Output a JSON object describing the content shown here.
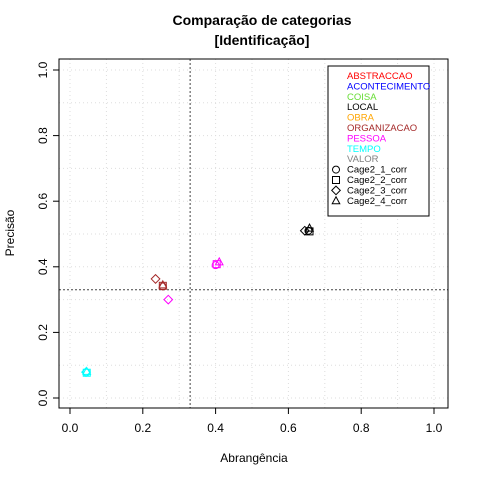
{
  "chart_data": {
    "type": "scatter",
    "title": "Comparação de categorias",
    "subtitle": "[Identificação]",
    "xlabel": "Abrangência",
    "ylabel": "Precisão",
    "xlim": [
      0.0,
      1.0
    ],
    "ylim": [
      0.0,
      1.0
    ],
    "x_ticks": [
      "0.0",
      "0.2",
      "0.4",
      "0.6",
      "0.8",
      "1.0"
    ],
    "y_ticks": [
      "0.0",
      "0.2",
      "0.4",
      "0.6",
      "0.8",
      "1.0"
    ],
    "grid": true,
    "legend_position": "top-right",
    "reference_lines": {
      "vertical_x": 0.33,
      "horizontal_y": 0.33
    },
    "categories": [
      {
        "name": "ABSTRACCAO",
        "color": "#ff0000"
      },
      {
        "name": "ACONTECIMENTO",
        "color": "#0000ff"
      },
      {
        "name": "COISA",
        "color": "#66dd33"
      },
      {
        "name": "LOCAL",
        "color": "#000000"
      },
      {
        "name": "OBRA",
        "color": "#ffa500"
      },
      {
        "name": "ORGANIZACAO",
        "color": "#a52a2a"
      },
      {
        "name": "PESSOA",
        "color": "#ff00ff"
      },
      {
        "name": "TEMPO",
        "color": "#00ffff"
      },
      {
        "name": "VALOR",
        "color": "#808080"
      }
    ],
    "runs": [
      {
        "name": "Cage2_1_corr",
        "marker": "circle"
      },
      {
        "name": "Cage2_2_corr",
        "marker": "square"
      },
      {
        "name": "Cage2_3_corr",
        "marker": "diamond"
      },
      {
        "name": "Cage2_4_corr",
        "marker": "triangle"
      }
    ],
    "points": [
      {
        "category": "LOCAL",
        "run": "Cage2_1_corr",
        "x": 0.655,
        "y": 0.51
      },
      {
        "category": "LOCAL",
        "run": "Cage2_2_corr",
        "x": 0.658,
        "y": 0.508
      },
      {
        "category": "LOCAL",
        "run": "Cage2_3_corr",
        "x": 0.645,
        "y": 0.51
      },
      {
        "category": "LOCAL",
        "run": "Cage2_4_corr",
        "x": 0.658,
        "y": 0.518
      },
      {
        "category": "PESSOA",
        "run": "Cage2_1_corr",
        "x": 0.4,
        "y": 0.405
      },
      {
        "category": "PESSOA",
        "run": "Cage2_2_corr",
        "x": 0.403,
        "y": 0.408
      },
      {
        "category": "PESSOA",
        "run": "Cage2_3_corr",
        "x": 0.27,
        "y": 0.3
      },
      {
        "category": "PESSOA",
        "run": "Cage2_4_corr",
        "x": 0.41,
        "y": 0.415
      },
      {
        "category": "ORGANIZACAO",
        "run": "Cage2_1_corr",
        "x": 0.255,
        "y": 0.34
      },
      {
        "category": "ORGANIZACAO",
        "run": "Cage2_2_corr",
        "x": 0.255,
        "y": 0.342
      },
      {
        "category": "ORGANIZACAO",
        "run": "Cage2_3_corr",
        "x": 0.235,
        "y": 0.363
      },
      {
        "category": "ORGANIZACAO",
        "run": "Cage2_4_corr",
        "x": 0.255,
        "y": 0.345
      },
      {
        "category": "TEMPO",
        "run": "Cage2_1_corr",
        "x": 0.045,
        "y": 0.078
      },
      {
        "category": "TEMPO",
        "run": "Cage2_2_corr",
        "x": 0.046,
        "y": 0.077
      },
      {
        "category": "TEMPO",
        "run": "Cage2_3_corr",
        "x": 0.044,
        "y": 0.079
      },
      {
        "category": "TEMPO",
        "run": "Cage2_4_corr",
        "x": 0.046,
        "y": 0.081
      }
    ]
  }
}
